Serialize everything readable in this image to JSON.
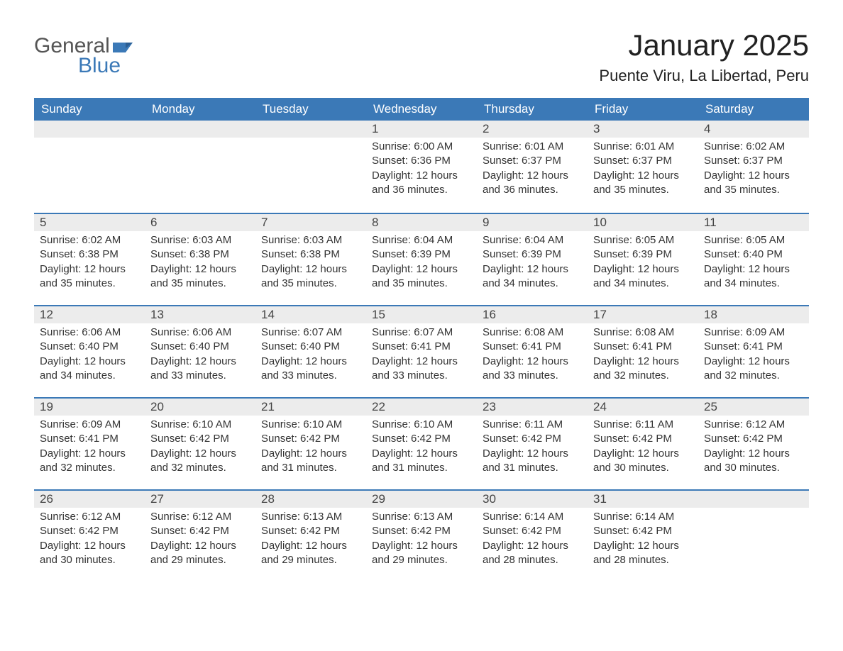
{
  "brand": {
    "word1": "General",
    "word2": "Blue",
    "flag_color": "#3b79b7"
  },
  "title": "January 2025",
  "location": "Puente Viru, La Libertad, Peru",
  "colors": {
    "header_bg": "#3b79b7",
    "header_text": "#ffffff",
    "daynum_bg": "#ececec",
    "divider": "#3b79b7",
    "body_text": "#333333",
    "page_bg": "#ffffff"
  },
  "fonts": {
    "title_size_pt": 32,
    "location_size_pt": 17,
    "header_size_pt": 13,
    "cell_size_pt": 11
  },
  "weekdays": [
    "Sunday",
    "Monday",
    "Tuesday",
    "Wednesday",
    "Thursday",
    "Friday",
    "Saturday"
  ],
  "weeks": [
    [
      null,
      null,
      null,
      {
        "n": "1",
        "sunrise": "Sunrise: 6:00 AM",
        "sunset": "Sunset: 6:36 PM",
        "daylight": "Daylight: 12 hours and 36 minutes."
      },
      {
        "n": "2",
        "sunrise": "Sunrise: 6:01 AM",
        "sunset": "Sunset: 6:37 PM",
        "daylight": "Daylight: 12 hours and 36 minutes."
      },
      {
        "n": "3",
        "sunrise": "Sunrise: 6:01 AM",
        "sunset": "Sunset: 6:37 PM",
        "daylight": "Daylight: 12 hours and 35 minutes."
      },
      {
        "n": "4",
        "sunrise": "Sunrise: 6:02 AM",
        "sunset": "Sunset: 6:37 PM",
        "daylight": "Daylight: 12 hours and 35 minutes."
      }
    ],
    [
      {
        "n": "5",
        "sunrise": "Sunrise: 6:02 AM",
        "sunset": "Sunset: 6:38 PM",
        "daylight": "Daylight: 12 hours and 35 minutes."
      },
      {
        "n": "6",
        "sunrise": "Sunrise: 6:03 AM",
        "sunset": "Sunset: 6:38 PM",
        "daylight": "Daylight: 12 hours and 35 minutes."
      },
      {
        "n": "7",
        "sunrise": "Sunrise: 6:03 AM",
        "sunset": "Sunset: 6:38 PM",
        "daylight": "Daylight: 12 hours and 35 minutes."
      },
      {
        "n": "8",
        "sunrise": "Sunrise: 6:04 AM",
        "sunset": "Sunset: 6:39 PM",
        "daylight": "Daylight: 12 hours and 35 minutes."
      },
      {
        "n": "9",
        "sunrise": "Sunrise: 6:04 AM",
        "sunset": "Sunset: 6:39 PM",
        "daylight": "Daylight: 12 hours and 34 minutes."
      },
      {
        "n": "10",
        "sunrise": "Sunrise: 6:05 AM",
        "sunset": "Sunset: 6:39 PM",
        "daylight": "Daylight: 12 hours and 34 minutes."
      },
      {
        "n": "11",
        "sunrise": "Sunrise: 6:05 AM",
        "sunset": "Sunset: 6:40 PM",
        "daylight": "Daylight: 12 hours and 34 minutes."
      }
    ],
    [
      {
        "n": "12",
        "sunrise": "Sunrise: 6:06 AM",
        "sunset": "Sunset: 6:40 PM",
        "daylight": "Daylight: 12 hours and 34 minutes."
      },
      {
        "n": "13",
        "sunrise": "Sunrise: 6:06 AM",
        "sunset": "Sunset: 6:40 PM",
        "daylight": "Daylight: 12 hours and 33 minutes."
      },
      {
        "n": "14",
        "sunrise": "Sunrise: 6:07 AM",
        "sunset": "Sunset: 6:40 PM",
        "daylight": "Daylight: 12 hours and 33 minutes."
      },
      {
        "n": "15",
        "sunrise": "Sunrise: 6:07 AM",
        "sunset": "Sunset: 6:41 PM",
        "daylight": "Daylight: 12 hours and 33 minutes."
      },
      {
        "n": "16",
        "sunrise": "Sunrise: 6:08 AM",
        "sunset": "Sunset: 6:41 PM",
        "daylight": "Daylight: 12 hours and 33 minutes."
      },
      {
        "n": "17",
        "sunrise": "Sunrise: 6:08 AM",
        "sunset": "Sunset: 6:41 PM",
        "daylight": "Daylight: 12 hours and 32 minutes."
      },
      {
        "n": "18",
        "sunrise": "Sunrise: 6:09 AM",
        "sunset": "Sunset: 6:41 PM",
        "daylight": "Daylight: 12 hours and 32 minutes."
      }
    ],
    [
      {
        "n": "19",
        "sunrise": "Sunrise: 6:09 AM",
        "sunset": "Sunset: 6:41 PM",
        "daylight": "Daylight: 12 hours and 32 minutes."
      },
      {
        "n": "20",
        "sunrise": "Sunrise: 6:10 AM",
        "sunset": "Sunset: 6:42 PM",
        "daylight": "Daylight: 12 hours and 32 minutes."
      },
      {
        "n": "21",
        "sunrise": "Sunrise: 6:10 AM",
        "sunset": "Sunset: 6:42 PM",
        "daylight": "Daylight: 12 hours and 31 minutes."
      },
      {
        "n": "22",
        "sunrise": "Sunrise: 6:10 AM",
        "sunset": "Sunset: 6:42 PM",
        "daylight": "Daylight: 12 hours and 31 minutes."
      },
      {
        "n": "23",
        "sunrise": "Sunrise: 6:11 AM",
        "sunset": "Sunset: 6:42 PM",
        "daylight": "Daylight: 12 hours and 31 minutes."
      },
      {
        "n": "24",
        "sunrise": "Sunrise: 6:11 AM",
        "sunset": "Sunset: 6:42 PM",
        "daylight": "Daylight: 12 hours and 30 minutes."
      },
      {
        "n": "25",
        "sunrise": "Sunrise: 6:12 AM",
        "sunset": "Sunset: 6:42 PM",
        "daylight": "Daylight: 12 hours and 30 minutes."
      }
    ],
    [
      {
        "n": "26",
        "sunrise": "Sunrise: 6:12 AM",
        "sunset": "Sunset: 6:42 PM",
        "daylight": "Daylight: 12 hours and 30 minutes."
      },
      {
        "n": "27",
        "sunrise": "Sunrise: 6:12 AM",
        "sunset": "Sunset: 6:42 PM",
        "daylight": "Daylight: 12 hours and 29 minutes."
      },
      {
        "n": "28",
        "sunrise": "Sunrise: 6:13 AM",
        "sunset": "Sunset: 6:42 PM",
        "daylight": "Daylight: 12 hours and 29 minutes."
      },
      {
        "n": "29",
        "sunrise": "Sunrise: 6:13 AM",
        "sunset": "Sunset: 6:42 PM",
        "daylight": "Daylight: 12 hours and 29 minutes."
      },
      {
        "n": "30",
        "sunrise": "Sunrise: 6:14 AM",
        "sunset": "Sunset: 6:42 PM",
        "daylight": "Daylight: 12 hours and 28 minutes."
      },
      {
        "n": "31",
        "sunrise": "Sunrise: 6:14 AM",
        "sunset": "Sunset: 6:42 PM",
        "daylight": "Daylight: 12 hours and 28 minutes."
      },
      null
    ]
  ]
}
